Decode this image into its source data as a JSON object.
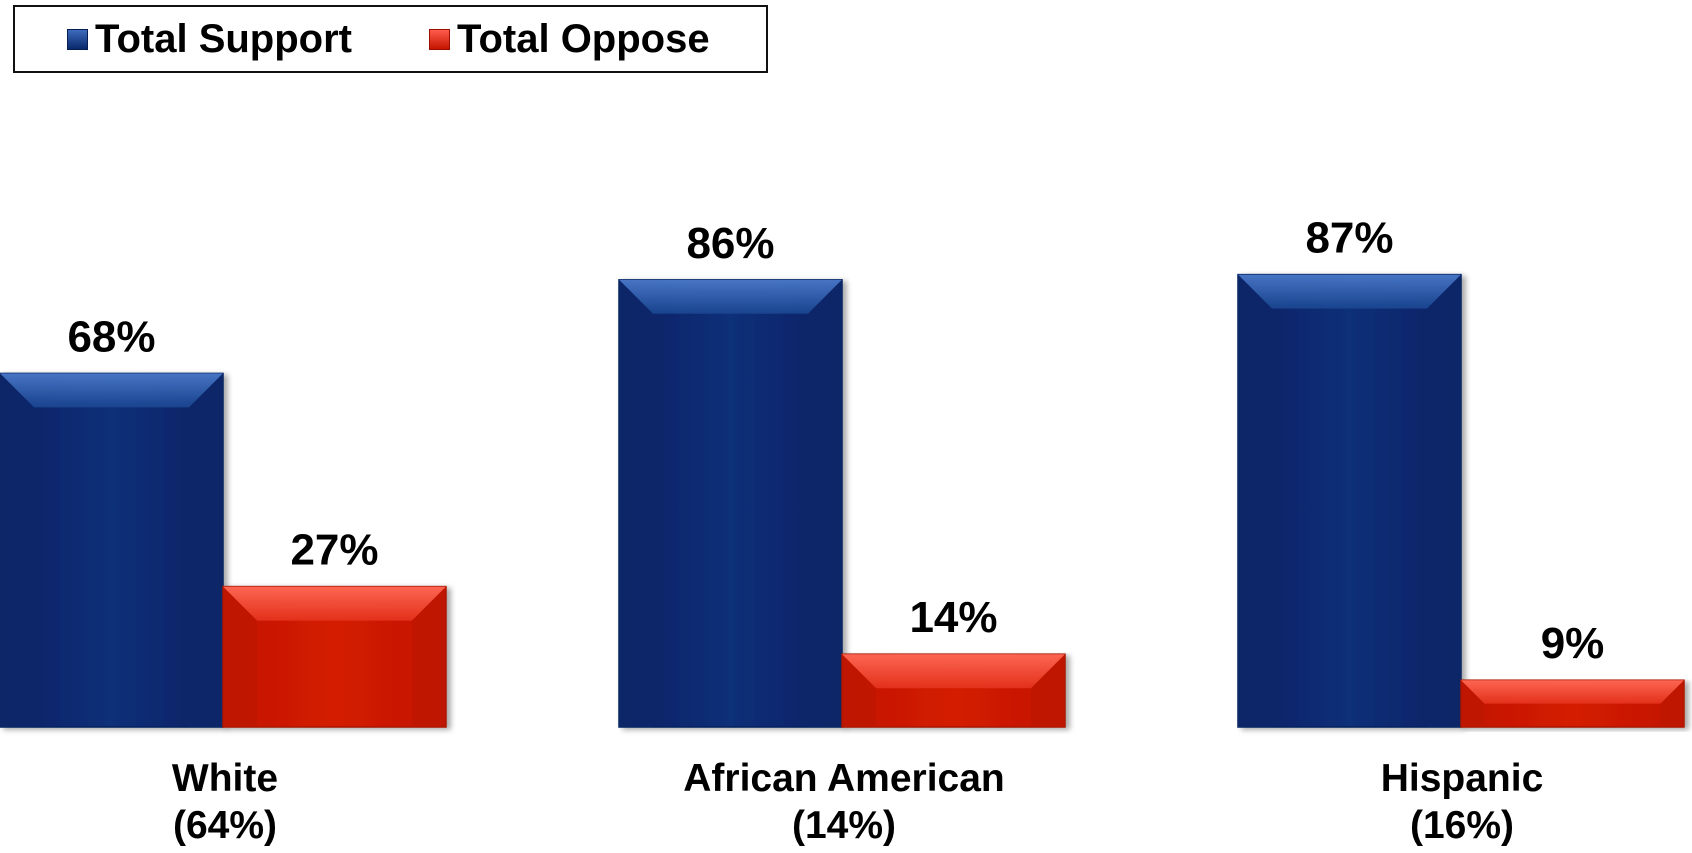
{
  "chart_data": {
    "type": "bar",
    "title": "",
    "xlabel": "",
    "ylabel": "",
    "ylim": [
      0,
      100
    ],
    "grid": false,
    "legend_position": "top-left",
    "categories": [
      {
        "name": "White",
        "share": "(64%)"
      },
      {
        "name": "African American",
        "share": "(14%)"
      },
      {
        "name": "Hispanic",
        "share": "(16%)"
      }
    ],
    "series": [
      {
        "name": "Total Support",
        "color": "#0b2d72",
        "values": [
          68,
          86,
          87
        ],
        "labels": [
          "68%",
          "86%",
          "87%"
        ]
      },
      {
        "name": "Total Oppose",
        "color": "#cc1800",
        "values": [
          27,
          14,
          9
        ],
        "labels": [
          "27%",
          "14%",
          "9%"
        ]
      }
    ]
  }
}
